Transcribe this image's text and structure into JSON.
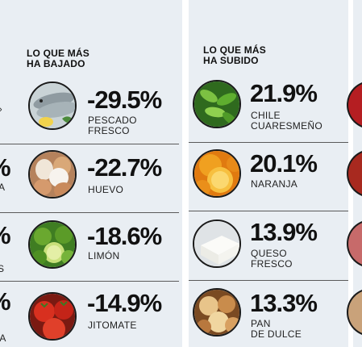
{
  "left_column": {
    "heading": [
      "LO QUE MÁS",
      "HA BAJADO"
    ],
    "items": [
      {
        "pct": "-29.5%",
        "name": [
          "PESCADO",
          "FRESCO"
        ],
        "icon": "fish-icon"
      },
      {
        "pct": "-22.7%",
        "name": [
          "HUEVO"
        ],
        "icon": "egg-icon"
      },
      {
        "pct": "-18.6%",
        "name": [
          "LIMÓN"
        ],
        "icon": "lime-icon"
      },
      {
        "pct": "-14.9%",
        "name": [
          "JITOMATE"
        ],
        "icon": "tomato-icon"
      }
    ]
  },
  "right_column": {
    "heading": [
      "LO QUE MÁS",
      "HA SUBIDO"
    ],
    "items": [
      {
        "pct": "21.9%",
        "name": [
          "CHILE",
          "CUARESMEÑO"
        ],
        "icon": "chili-icon"
      },
      {
        "pct": "20.1%",
        "name": [
          "NARANJA"
        ],
        "icon": "orange-icon"
      },
      {
        "pct": "13.9%",
        "name": [
          "QUESO",
          "FRESCO"
        ],
        "icon": "cheese-icon"
      },
      {
        "pct": "13.3%",
        "name": [
          "PAN",
          "DE DULCE"
        ],
        "icon": "sweet-bread-icon"
      }
    ]
  },
  "left_edge_fragments": {
    "pct_glyph": "%",
    "name_glyphs": [
      "A",
      "S",
      "ZA"
    ]
  }
}
